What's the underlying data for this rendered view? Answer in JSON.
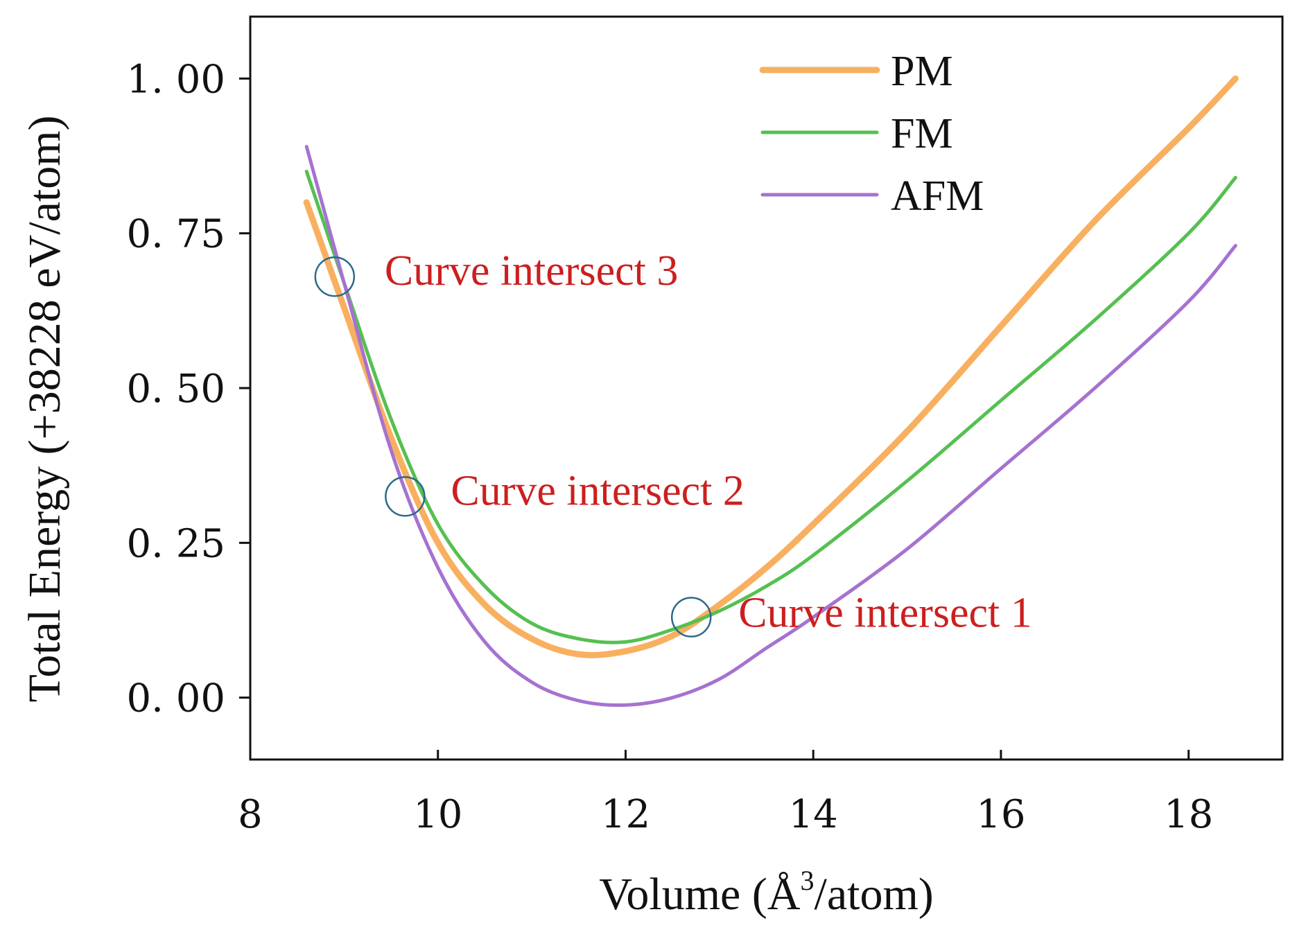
{
  "chart_data": {
    "type": "line",
    "title": "",
    "xlabel_main": "Volume (Å",
    "xlabel_sup": "3",
    "xlabel_tail": "/atom)",
    "ylabel": "Total Energy (+38228 eV/atom)",
    "xlim": [
      8,
      19
    ],
    "ylim": [
      -0.1,
      1.1
    ],
    "x_ticks": [
      8,
      10,
      12,
      14,
      16,
      18
    ],
    "x_tick_labels": [
      "8",
      "10",
      "12",
      "14",
      "16",
      "18"
    ],
    "y_ticks": [
      0.0,
      0.25,
      0.5,
      0.75,
      1.0
    ],
    "y_tick_labels": [
      "0. 00",
      "0. 25",
      "0. 50",
      "0. 75",
      "1. 00"
    ],
    "legend_position": "top-right",
    "series": [
      {
        "name": "PM",
        "color": "#f8b060",
        "stroke": "thick",
        "x": [
          8.6,
          9.0,
          9.5,
          10.0,
          10.5,
          11.0,
          11.5,
          12.0,
          12.5,
          13.0,
          13.5,
          14.0,
          15.0,
          16.0,
          17.0,
          18.0,
          18.5
        ],
        "y": [
          0.8,
          0.63,
          0.42,
          0.25,
          0.15,
          0.095,
          0.07,
          0.075,
          0.1,
          0.15,
          0.21,
          0.28,
          0.43,
          0.6,
          0.77,
          0.92,
          1.0
        ]
      },
      {
        "name": "FM",
        "color": "#55c050",
        "stroke": "medium",
        "x": [
          8.6,
          9.0,
          9.5,
          10.0,
          10.5,
          11.0,
          11.5,
          12.0,
          12.5,
          13.0,
          13.5,
          14.0,
          15.0,
          16.0,
          17.0,
          18.0,
          18.5
        ],
        "y": [
          0.85,
          0.67,
          0.45,
          0.28,
          0.18,
          0.12,
          0.095,
          0.09,
          0.11,
          0.14,
          0.18,
          0.23,
          0.35,
          0.48,
          0.61,
          0.75,
          0.84
        ]
      },
      {
        "name": "AFM",
        "color": "#a672d0",
        "stroke": "medium",
        "x": [
          8.6,
          9.0,
          9.5,
          10.0,
          10.5,
          11.0,
          11.5,
          12.0,
          12.5,
          13.0,
          13.5,
          14.0,
          15.0,
          16.0,
          17.0,
          18.0,
          18.5
        ],
        "y": [
          0.89,
          0.67,
          0.4,
          0.21,
          0.09,
          0.025,
          -0.005,
          -0.012,
          0.0,
          0.03,
          0.08,
          0.13,
          0.24,
          0.37,
          0.5,
          0.64,
          0.73
        ]
      }
    ],
    "annotations": [
      {
        "label": "Curve intersect 1",
        "x": 12.7,
        "y": 0.13,
        "circle_color": "#2a6a8a",
        "text_color": "#cc1f1f"
      },
      {
        "label": "Curve intersect 2",
        "x": 9.65,
        "y": 0.325,
        "circle_color": "#2a6a8a",
        "text_color": "#cc1f1f"
      },
      {
        "label": "Curve intersect 3",
        "x": 8.9,
        "y": 0.68,
        "circle_color": "#2a6a8a",
        "text_color": "#cc1f1f"
      }
    ]
  }
}
